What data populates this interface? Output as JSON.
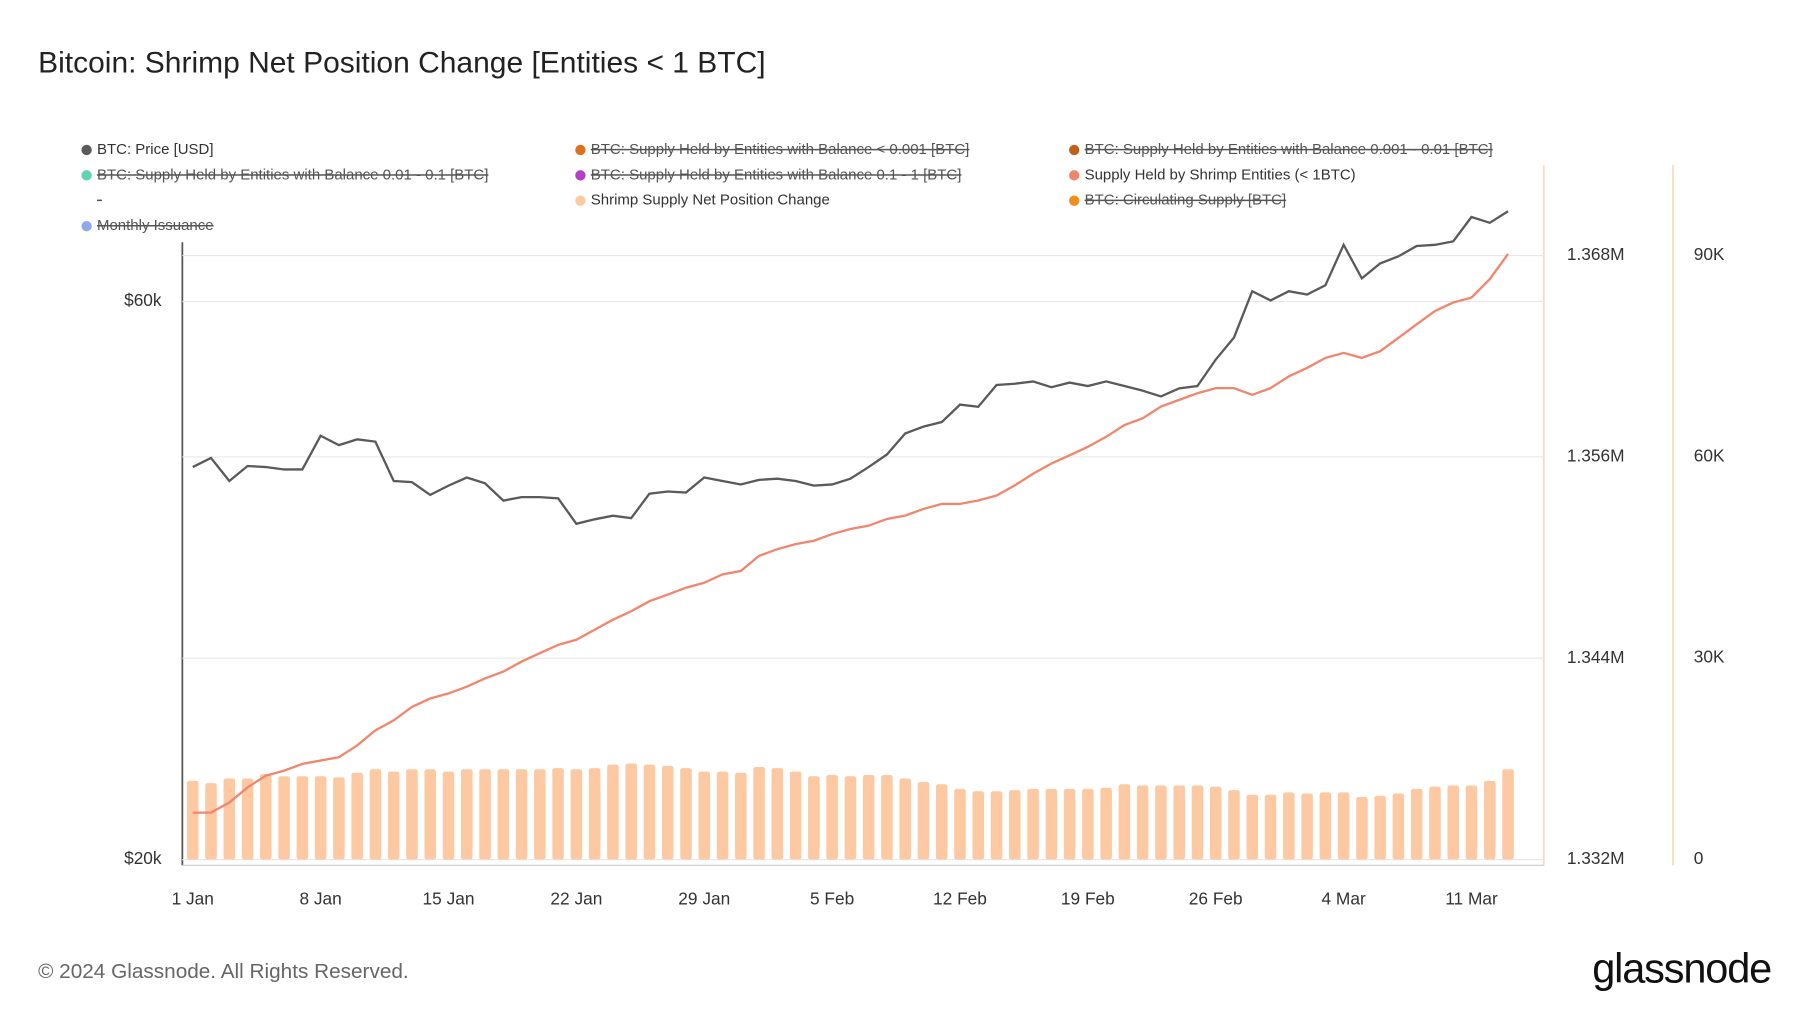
{
  "chart_data": {
    "type": "line",
    "title": "Bitcoin: Shrimp Net Position Change [Entities < 1 BTC]",
    "footer": "© 2024 Glassnode. All Rights Reserved.",
    "logo": "glassnode",
    "categories": [
      "1 Jan",
      null,
      null,
      null,
      null,
      null,
      null,
      "8 Jan",
      null,
      null,
      null,
      null,
      null,
      null,
      "15 Jan",
      null,
      null,
      null,
      null,
      null,
      null,
      "22 Jan",
      null,
      null,
      null,
      null,
      null,
      null,
      "29 Jan",
      null,
      null,
      null,
      null,
      null,
      null,
      "5 Feb",
      null,
      null,
      null,
      null,
      null,
      null,
      "12 Feb",
      null,
      null,
      null,
      null,
      null,
      null,
      "19 Feb",
      null,
      null,
      null,
      null,
      null,
      null,
      "26 Feb",
      null,
      null,
      null,
      null,
      null,
      null,
      "4 Mar",
      null,
      null,
      null,
      null,
      null,
      null,
      "11 Mar",
      null,
      null
    ],
    "log_y": true,
    "ylim": [
      20000,
      78500
    ],
    "yticks": [
      {
        "value": 20000,
        "label": "$20k"
      },
      {
        "value": 60000,
        "label": "$60k"
      }
    ],
    "y2lim": [
      1332000,
      1373400
    ],
    "y2ticks": [
      {
        "value": 1332000,
        "label": "1.332M"
      },
      {
        "value": 1344000,
        "label": "1.344M"
      },
      {
        "value": 1356000,
        "label": "1.356M"
      },
      {
        "value": 1368000,
        "label": "1.368M"
      }
    ],
    "y3lim": [
      0,
      103450
    ],
    "y3ticks": [
      0,
      {
        "value": 30000,
        "label": "30K"
      },
      {
        "value": 60000,
        "label": "60K"
      },
      {
        "value": 90000,
        "label": "90K"
      }
    ],
    "grid": true,
    "series": [
      {
        "name": "BTC: Price [USD]",
        "type": "line",
        "axis": "y",
        "color": "#5a5a5a",
        "values": [
          43310,
          44100,
          42140,
          43400,
          43310,
          43110,
          43110,
          46060,
          45220,
          45740,
          45530,
          42140,
          42040,
          41000,
          41760,
          42430,
          41950,
          40540,
          40820,
          40820,
          40730,
          38730,
          39080,
          39350,
          39170,
          41100,
          41280,
          41190,
          42430,
          42140,
          41850,
          42230,
          42330,
          42140,
          41760,
          41850,
          42330,
          43310,
          44400,
          46270,
          46900,
          47330,
          48980,
          48760,
          50910,
          51030,
          51260,
          50680,
          51150,
          50800,
          51260,
          50800,
          50340,
          49770,
          50570,
          50800,
          53530,
          55900,
          61230,
          60130,
          61230,
          60820,
          61940,
          67080,
          62790,
          64680,
          65570,
          66930,
          67080,
          67540,
          70860,
          70050,
          71670
        ]
      },
      {
        "name": "Supply Held by Shrimp Entities (< 1BTC)",
        "type": "line",
        "axis": "y2",
        "color": "#f0866c",
        "values": [
          1334800,
          1334800,
          1335400,
          1336300,
          1337000,
          1337300,
          1337700,
          1337900,
          1338100,
          1338800,
          1339700,
          1340300,
          1341100,
          1341600,
          1341900,
          1342300,
          1342800,
          1343200,
          1343800,
          1344300,
          1344800,
          1345100,
          1345700,
          1346300,
          1346800,
          1347400,
          1347800,
          1348200,
          1348500,
          1349000,
          1349200,
          1350100,
          1350500,
          1350800,
          1351000,
          1351400,
          1351700,
          1351900,
          1352300,
          1352500,
          1352900,
          1353200,
          1353200,
          1353400,
          1353700,
          1354300,
          1355000,
          1355600,
          1356100,
          1356600,
          1357200,
          1357900,
          1358300,
          1359000,
          1359400,
          1359800,
          1360100,
          1360100,
          1359700,
          1360100,
          1360800,
          1361300,
          1361900,
          1362200,
          1361900,
          1362300,
          1363100,
          1363900,
          1364700,
          1365200,
          1365500,
          1366600,
          1368100
        ]
      },
      {
        "name": "Shrimp Supply Net Position Change",
        "type": "bar",
        "axis": "y3",
        "color": "#fcc9a2",
        "values": [
          11720,
          11380,
          12070,
          12070,
          12760,
          12410,
          12410,
          12410,
          12240,
          12930,
          13450,
          13100,
          13450,
          13450,
          13100,
          13450,
          13450,
          13450,
          13450,
          13450,
          13620,
          13450,
          13620,
          14140,
          14310,
          14140,
          13960,
          13620,
          13100,
          13100,
          12930,
          13790,
          13620,
          13100,
          12410,
          12590,
          12410,
          12590,
          12590,
          12070,
          11550,
          11210,
          10520,
          10170,
          10170,
          10340,
          10520,
          10520,
          10520,
          10520,
          10690,
          11210,
          11030,
          11030,
          11030,
          11030,
          10860,
          10340,
          9650,
          9650,
          10000,
          9830,
          10000,
          10000,
          9310,
          9480,
          9830,
          10520,
          10860,
          11030,
          11030,
          11720,
          13450
        ]
      }
    ],
    "inactive_series": [
      {
        "name": "BTC: Supply Held by Entities with Balance < 0.001 [BTC]",
        "color": "#e0701e"
      },
      {
        "name": "BTC: Supply Held by Entities with Balance 0.001 - 0.01 [BTC]",
        "color": "#c0601a"
      },
      {
        "name": "BTC: Supply Held by Entities with Balance 0.01 - 0.1 [BTC]",
        "color": "#5fd4b2"
      },
      {
        "name": "BTC: Supply Held by Entities with Balance 0.1 - 1 [BTC]",
        "color": "#b23fc4"
      },
      {
        "name": "-"
      },
      {
        "name": "BTC: Circulating Supply [BTC]",
        "color": "#f0901c"
      },
      {
        "name": "Monthly Issuance",
        "color": "#8fa8f0"
      }
    ]
  }
}
